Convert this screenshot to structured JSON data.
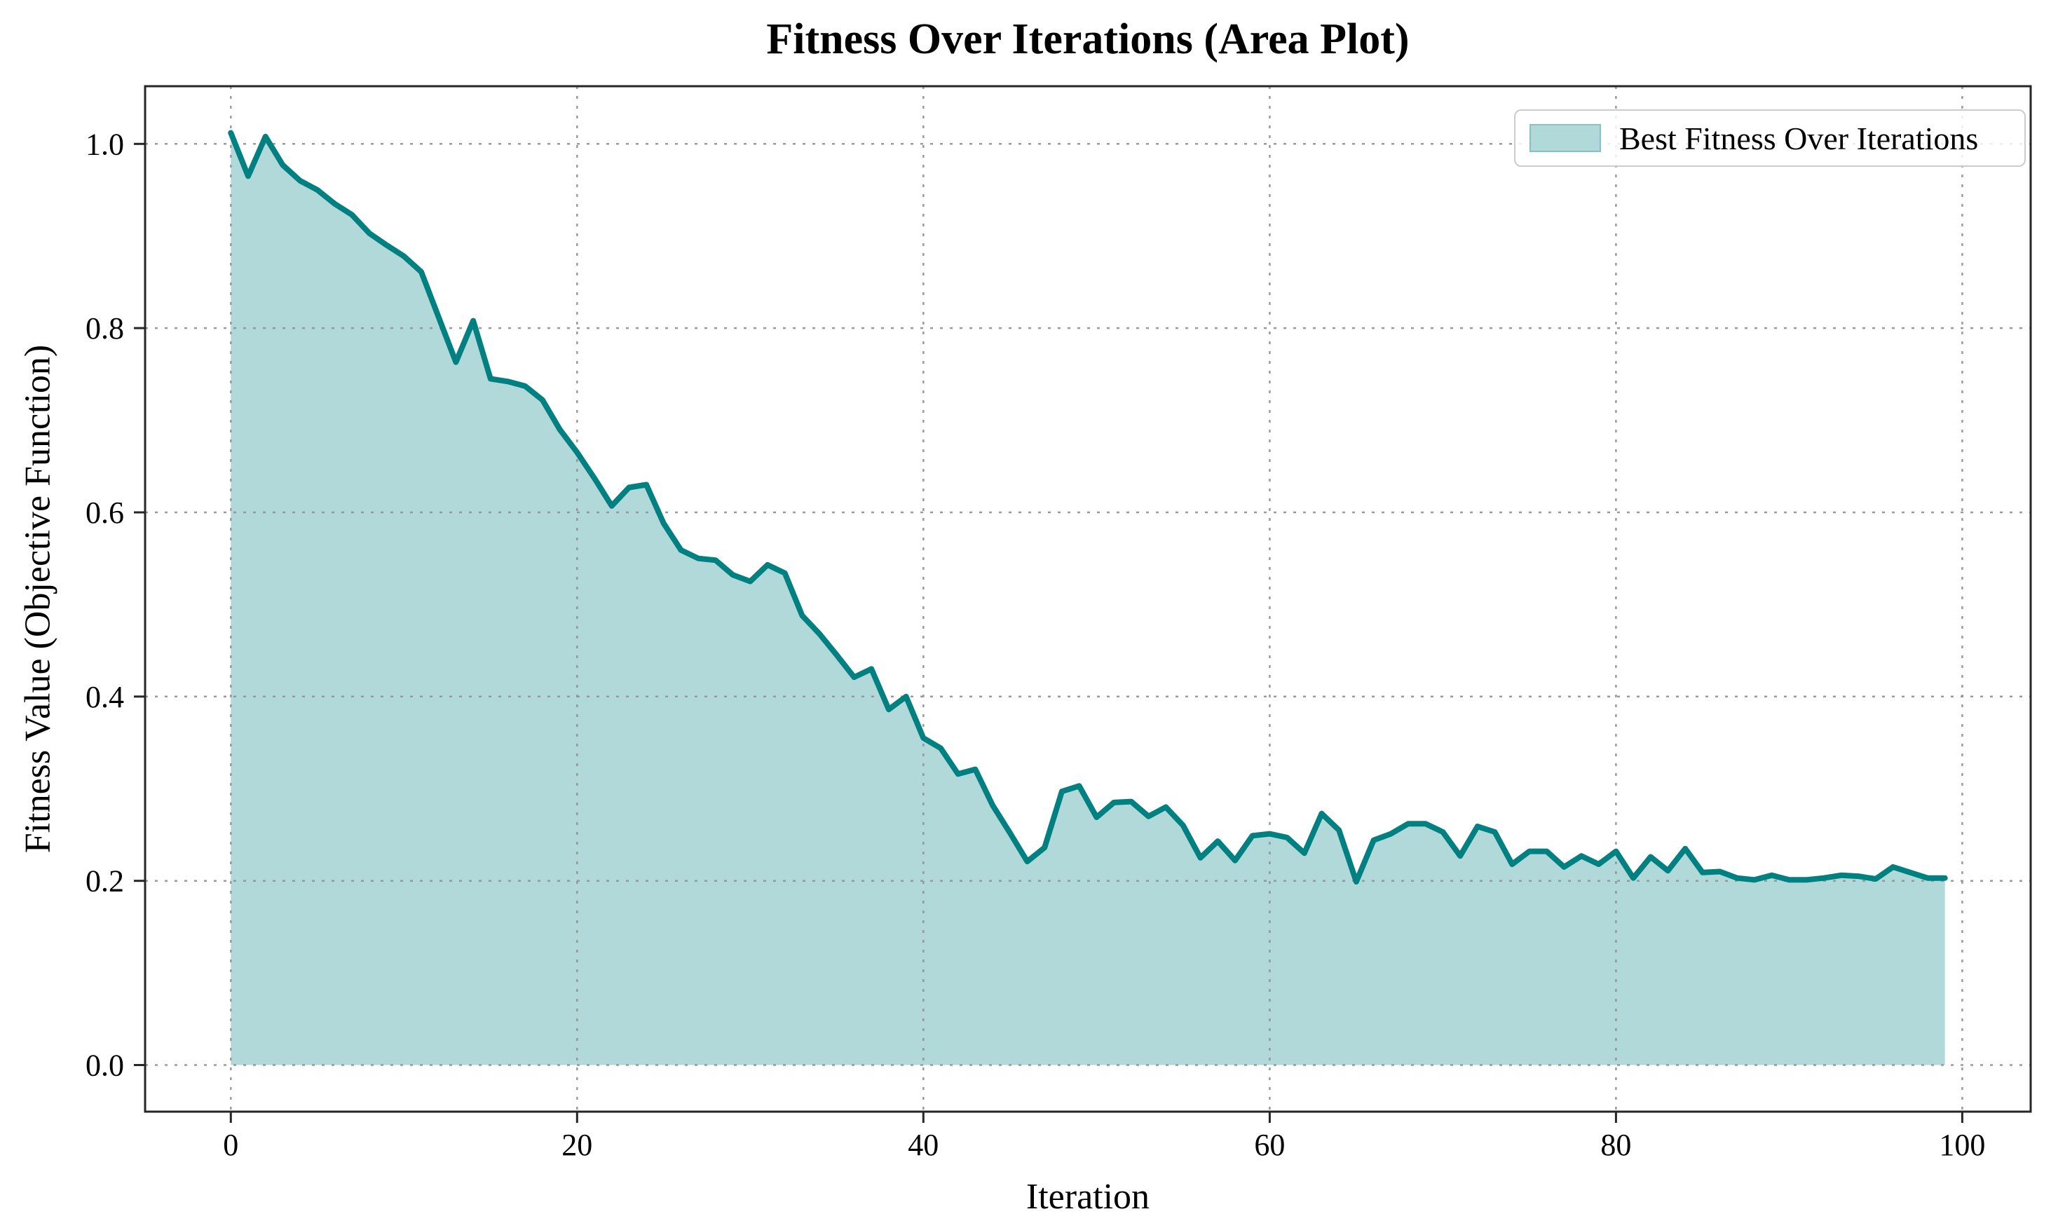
{
  "figure": {
    "background": "#ffffff"
  },
  "chart_data": {
    "type": "area",
    "title": "Fitness Over Iterations (Area Plot)",
    "xlabel": "Iteration",
    "ylabel": "Fitness Value (Objective Function)",
    "legend_position": "upper right",
    "grid": true,
    "grid_style": "dotted",
    "xlim": [
      -4.95,
      103.95
    ],
    "ylim": [
      -0.0506,
      1.0626
    ],
    "xticks": [
      0,
      20,
      40,
      60,
      80,
      100
    ],
    "xtick_labels": [
      "0",
      "20",
      "40",
      "60",
      "80",
      "100"
    ],
    "yticks": [
      0.0,
      0.2,
      0.4,
      0.6,
      0.8,
      1.0
    ],
    "ytick_labels": [
      "0.0",
      "0.2",
      "0.4",
      "0.6",
      "0.8",
      "1.0"
    ],
    "fill_baseline": 0.0,
    "series": [
      {
        "name": "Best Fitness Over Iterations",
        "x_start": 0,
        "x_step": 1,
        "values": [
          1.012,
          0.965,
          1.008,
          0.977,
          0.96,
          0.95,
          0.935,
          0.923,
          0.903,
          0.89,
          0.878,
          0.861,
          0.812,
          0.763,
          0.808,
          0.745,
          0.742,
          0.737,
          0.722,
          0.69,
          0.665,
          0.637,
          0.607,
          0.627,
          0.63,
          0.588,
          0.559,
          0.55,
          0.548,
          0.532,
          0.525,
          0.543,
          0.534,
          0.488,
          0.468,
          0.445,
          0.421,
          0.43,
          0.386,
          0.4,
          0.355,
          0.344,
          0.316,
          0.321,
          0.282,
          0.252,
          0.221,
          0.236,
          0.297,
          0.303,
          0.269,
          0.285,
          0.286,
          0.27,
          0.28,
          0.26,
          0.225,
          0.243,
          0.222,
          0.249,
          0.251,
          0.247,
          0.23,
          0.273,
          0.255,
          0.199,
          0.244,
          0.251,
          0.262,
          0.262,
          0.253,
          0.227,
          0.259,
          0.253,
          0.218,
          0.232,
          0.232,
          0.215,
          0.227,
          0.218,
          0.232,
          0.203,
          0.226,
          0.211,
          0.235,
          0.209,
          0.21,
          0.203,
          0.201,
          0.206,
          0.201,
          0.201,
          0.203,
          0.206,
          0.205,
          0.202,
          0.215,
          0.209,
          0.203,
          0.203
        ]
      }
    ],
    "colors": {
      "line": "#008080",
      "fill": "#b2d9d9",
      "grid": "#909090",
      "spine": "#262626",
      "text": "#000000",
      "legend_border": "#cccccc",
      "legend_swatch_fill": "#b2d9d9",
      "legend_swatch_border": "#85c2c2"
    }
  }
}
